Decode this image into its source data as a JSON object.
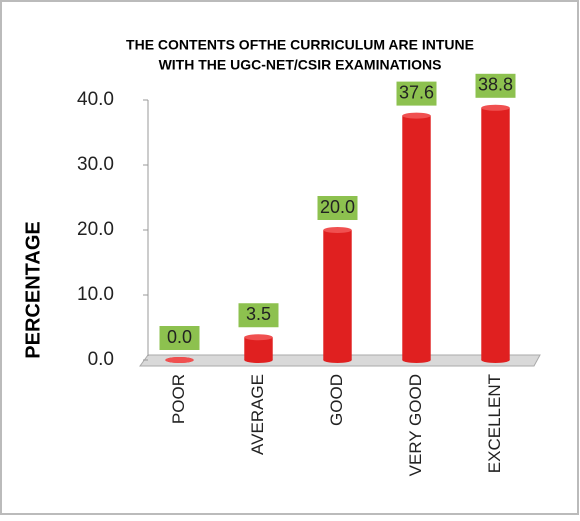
{
  "chart_data": {
    "type": "bar",
    "title": [
      "THE CONTENTS OFTHE CURRICULUM ARE INTUNE",
      "WITH THE UGC-NET/CSIR EXAMINATIONS"
    ],
    "y_label": "PERCENTAGE",
    "categories": [
      "POOR",
      "AVERAGE",
      "GOOD",
      "VERY GOOD",
      "EXCELLENT"
    ],
    "values": [
      0,
      3.5,
      20,
      37.6,
      38.8
    ],
    "value_labels": [
      "0.0",
      "3.5",
      "20.0",
      "37.6",
      "38.8"
    ],
    "color": "#e02020",
    "ylim": [
      0,
      40
    ],
    "yticks": [
      {
        "value": 0,
        "label": "0.0"
      },
      {
        "value": 10,
        "label": "10.0"
      },
      {
        "value": 20,
        "label": "20.0"
      },
      {
        "value": 30,
        "label": "30.0"
      },
      {
        "value": 40,
        "label": "40.0"
      }
    ],
    "grid": false
  }
}
